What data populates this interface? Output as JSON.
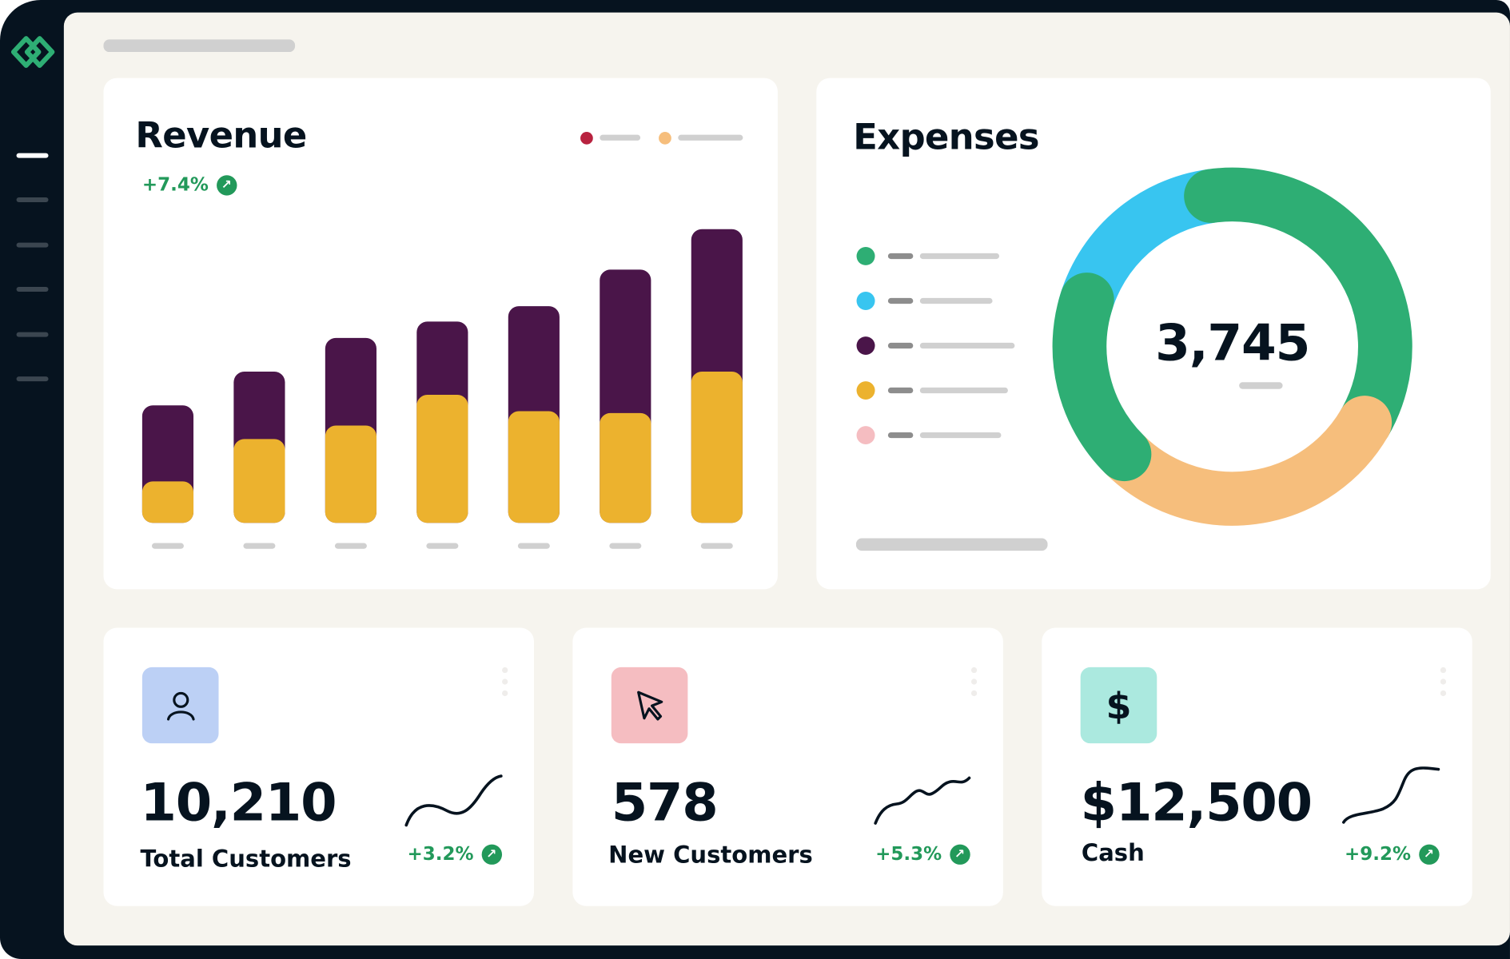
{
  "colors": {
    "frame": "#06131f",
    "panel": "#f6f4ee",
    "positive": "#22995a",
    "purple": "#4a1549",
    "yellow": "#ecb22e",
    "green": "#2eae74",
    "blue": "#38c5f0",
    "orange": "#f6be7c",
    "pink": "#f5bdc1",
    "crimson": "#b8223f"
  },
  "sidebar": {
    "logo_icon": "interlocked-diamonds-logo",
    "items": 6,
    "active_index": 0
  },
  "revenue": {
    "title": "Revenue",
    "change": "+7.4%",
    "change_icon": "arrow-up-right-icon",
    "legend_colors": [
      "#b8223f",
      "#f6be7c"
    ]
  },
  "expenses": {
    "title": "Expenses",
    "total": "3,745",
    "legend_colors": [
      "#2eae74",
      "#38c5f0",
      "#4a1549",
      "#ecb22e",
      "#f5bdc1"
    ]
  },
  "stats": [
    {
      "value": "10,210",
      "label": "Total Customers",
      "change": "+3.2%",
      "icon": "user-icon",
      "tile_color": "#bcd0f5"
    },
    {
      "value": "578",
      "label": "New Customers",
      "change": "+5.3%",
      "icon": "cursor-arrow-icon",
      "tile_color": "#f5bdc1"
    },
    {
      "value": "$12,500",
      "label": "Cash",
      "change": "+9.2%",
      "icon": "dollar-icon",
      "tile_color": "#abe9df"
    }
  ],
  "chart_data": [
    {
      "type": "bar",
      "stacked": true,
      "categories": [
        "",
        "",
        "",
        "",
        "",
        "",
        ""
      ],
      "series": [
        {
          "color": "#ecb22e",
          "values": [
            43,
            87,
            101,
            133,
            116,
            114,
            157
          ]
        },
        {
          "color": "#4a1549",
          "values": [
            79,
            70,
            91,
            76,
            109,
            149,
            148
          ]
        }
      ],
      "grid": false
    },
    {
      "type": "pie",
      "donut": true,
      "center_label": "3,745",
      "segments": [
        {
          "color": "#38c5f0",
          "start_deg": 285,
          "end_deg": 352
        },
        {
          "color": "#2eae74",
          "start_deg": 352,
          "end_deg": 480
        },
        {
          "color": "#f6be7c",
          "start_deg": 120,
          "end_deg": 225
        },
        {
          "color": "#2eae74",
          "start_deg": 225,
          "end_deg": 288
        }
      ]
    }
  ]
}
